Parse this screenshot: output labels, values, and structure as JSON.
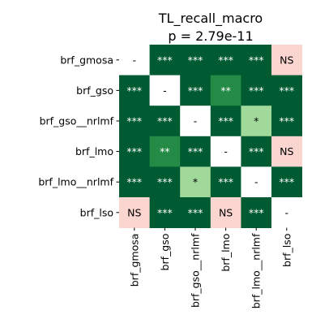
{
  "chart_data": {
    "type": "heatmap",
    "title": "TL_recall_macro",
    "subtitle": "p = 2.79e-11",
    "rows": [
      "brf_gmosa",
      "brf_gso",
      "brf_gso__nrlmf",
      "brf_lmo",
      "brf_lmo__nrlmf",
      "brf_lso"
    ],
    "columns": [
      "brf_gmosa",
      "brf_gso",
      "brf_gso__nrlmf",
      "brf_lmo",
      "brf_lmo__nrlmf",
      "brf_lso"
    ],
    "cells": [
      [
        "-",
        "***",
        "***",
        "***",
        "***",
        "NS"
      ],
      [
        "***",
        "-",
        "***",
        "**",
        "***",
        "***"
      ],
      [
        "***",
        "***",
        "-",
        "***",
        "*",
        "***"
      ],
      [
        "***",
        "**",
        "***",
        "-",
        "***",
        "NS"
      ],
      [
        "***",
        "***",
        "*",
        "***",
        "-",
        "***"
      ],
      [
        "NS",
        "***",
        "***",
        "NS",
        "***",
        "-"
      ]
    ],
    "colors": {
      "***": "#005a32",
      "**": "#238b45",
      "*": "#a1d99b",
      "NS": "#fbd5cf",
      "-": "#ffffff"
    },
    "text_colors": {
      "***": "#ffffff",
      "**": "#ffffff",
      "*": "#000000",
      "NS": "#000000",
      "-": "#000000"
    },
    "legend": "none"
  }
}
